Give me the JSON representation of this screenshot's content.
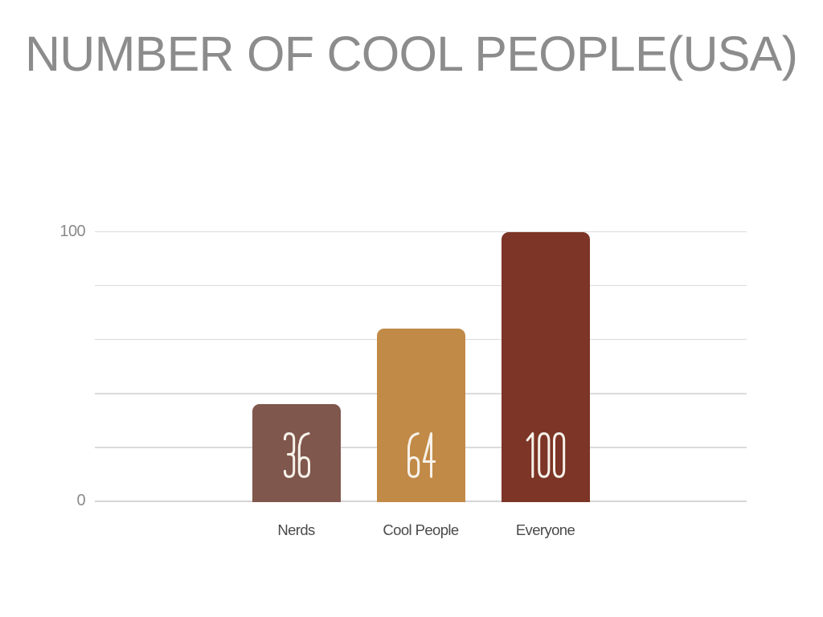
{
  "slide": {
    "background": "#ffffff"
  },
  "chart": {
    "title": "NUMBER OF COOL PEOPLE(USA)"
  },
  "chart_data": {
    "type": "bar",
    "title": "NUMBER OF COOL PEOPLE(USA)",
    "categories": [
      "Nerds",
      "Cool People",
      "Everyone"
    ],
    "values": [
      36,
      64,
      100
    ],
    "bar_labels": [
      "36",
      "64",
      "100"
    ],
    "bar_colors": [
      "#80574D",
      "#C18A47",
      "#7C3526"
    ],
    "xlabel": "",
    "ylabel": "",
    "ylim": [
      0,
      100
    ],
    "gridline_step": 20,
    "grid": true,
    "legend": false,
    "y_ticks": [
      {
        "value": 100,
        "label": "100"
      },
      {
        "value": 0,
        "label": "0"
      }
    ]
  },
  "colors": {
    "title": "#8C8C8C",
    "y_tick_label": "#8A8A8A",
    "x_label": "#4A4A4A",
    "gridline": "#DBDBDB",
    "baseline": "#D5D5D5",
    "value_label": "#F7F2EA",
    "background": "#FFFFFF"
  }
}
